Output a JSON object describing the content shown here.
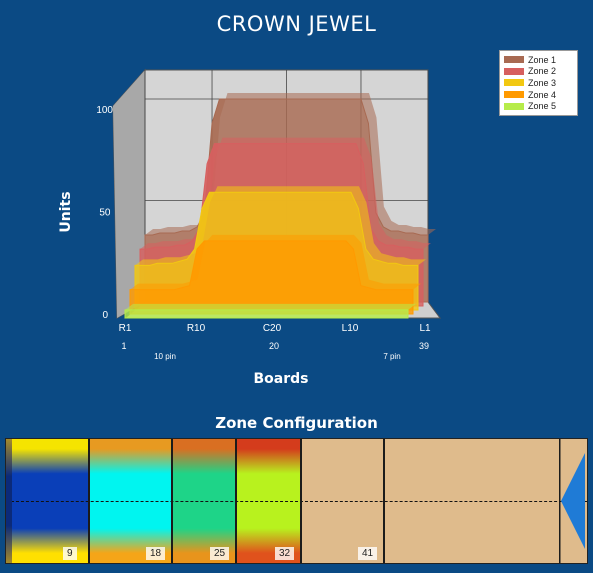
{
  "chart_title": "CROWN JEWEL",
  "chart_data": {
    "type": "area",
    "chart_style": "3d-stacked-depth",
    "ylabel": "Units",
    "xlabel": "Boards",
    "ylim": [
      0,
      100
    ],
    "y_ticks": [
      "0",
      "50",
      "100"
    ],
    "x_ticks": [
      "R1",
      "R10",
      "C20",
      "L10",
      "L1"
    ],
    "x_numbers": [
      "1",
      "20",
      "39"
    ],
    "x_sublabels": [
      "10 pin",
      "7 pin"
    ],
    "x": [
      1,
      2,
      3,
      4,
      5,
      6,
      7,
      8,
      9,
      10,
      11,
      12,
      13,
      14,
      15,
      16,
      17,
      18,
      19,
      20,
      21,
      22,
      23,
      24,
      25,
      26,
      27,
      28,
      29,
      30,
      31,
      32,
      33,
      34,
      35,
      36,
      37,
      38,
      39
    ],
    "series": [
      {
        "name": "Zone 1",
        "color": "#a86a52",
        "values": [
          33,
          33,
          34,
          34,
          34,
          35,
          35,
          37,
          44,
          88,
          100,
          100,
          100,
          100,
          100,
          100,
          100,
          100,
          100,
          100,
          100,
          100,
          100,
          100,
          100,
          100,
          100,
          100,
          100,
          100,
          88,
          44,
          37,
          35,
          35,
          34,
          34,
          33,
          33
        ]
      },
      {
        "name": "Zone 2",
        "color": "#d75f5f",
        "values": [
          28,
          28,
          29,
          29,
          29,
          30,
          30,
          32,
          38,
          70,
          80,
          80,
          80,
          80,
          80,
          80,
          80,
          80,
          80,
          80,
          80,
          80,
          80,
          80,
          80,
          80,
          80,
          80,
          80,
          80,
          70,
          38,
          32,
          30,
          30,
          29,
          29,
          28,
          28
        ]
      },
      {
        "name": "Zone 3",
        "color": "#f2c811",
        "values": [
          22,
          22,
          22,
          23,
          23,
          23,
          24,
          25,
          30,
          50,
          58,
          58,
          58,
          58,
          58,
          58,
          58,
          58,
          58,
          58,
          58,
          58,
          58,
          58,
          58,
          58,
          58,
          58,
          58,
          58,
          50,
          30,
          25,
          24,
          23,
          23,
          22,
          22,
          22
        ]
      },
      {
        "name": "Zone 4",
        "color": "#ff9a00",
        "values": [
          12,
          12,
          12,
          12,
          12,
          12,
          12,
          13,
          14,
          32,
          36,
          36,
          36,
          36,
          36,
          36,
          36,
          36,
          36,
          36,
          36,
          36,
          36,
          36,
          36,
          36,
          36,
          36,
          36,
          36,
          32,
          14,
          13,
          12,
          12,
          12,
          12,
          12,
          12
        ]
      },
      {
        "name": "Zone 5",
        "color": "#b6ec4a",
        "values": [
          4,
          4,
          4,
          4,
          4,
          4,
          4,
          4,
          4,
          4,
          4,
          4,
          4,
          4,
          4,
          4,
          4,
          4,
          4,
          4,
          4,
          4,
          4,
          4,
          4,
          4,
          4,
          4,
          4,
          4,
          4,
          4,
          4,
          4,
          4,
          4,
          4,
          4,
          4
        ]
      }
    ],
    "legend_position": "top-right"
  },
  "zone_config": {
    "title": "Zone Configuration",
    "zones": [
      {
        "label": "9",
        "colors": [
          "#f5e400",
          "#0a3fb8",
          "#ffe000"
        ]
      },
      {
        "label": "18",
        "colors": [
          "#e79a21",
          "#00f5f0",
          "#f5a518"
        ]
      },
      {
        "label": "25",
        "colors": [
          "#d96f22",
          "#1ed488",
          "#e8941c"
        ]
      },
      {
        "label": "32",
        "colors": [
          "#d43c1c",
          "#b8f21e",
          "#e0521c"
        ]
      },
      {
        "label": "41",
        "colors": [
          "#dfbb8c",
          "#dfbb8c",
          "#dfbb8c"
        ]
      }
    ],
    "arrow_color": "#1f7bd6"
  }
}
